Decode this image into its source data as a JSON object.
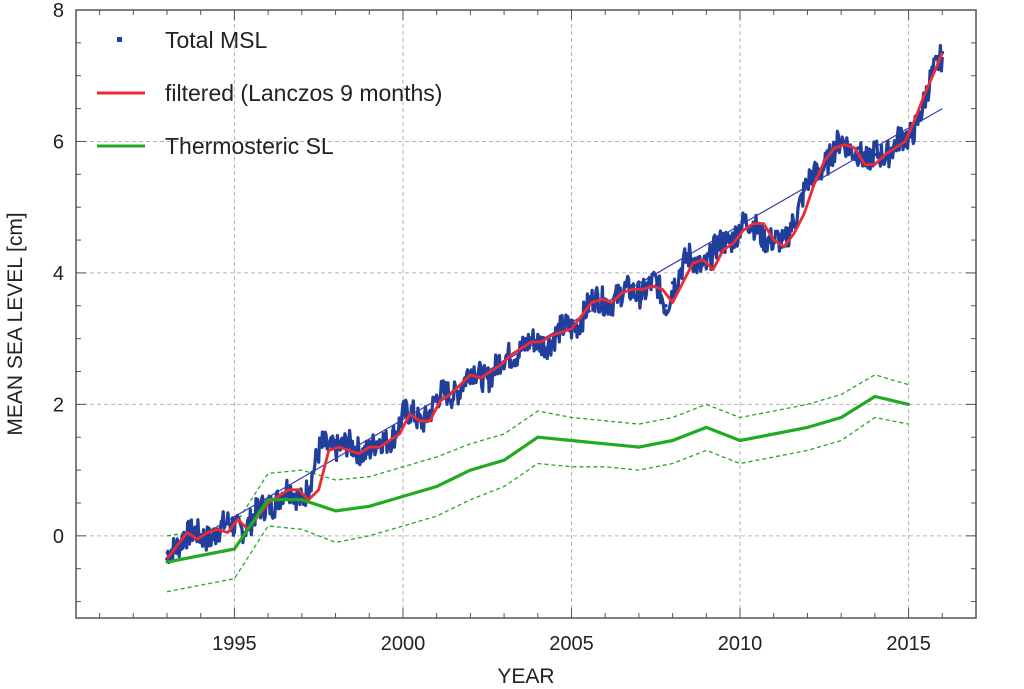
{
  "chart_data": {
    "type": "line",
    "xlabel": "YEAR",
    "ylabel": "MEAN SEA LEVEL [cm]",
    "xlim": [
      1990.3,
      2017.0
    ],
    "ylim": [
      -1.25,
      8.0
    ],
    "x_ticks": [
      1995,
      2000,
      2005,
      2010,
      2015
    ],
    "y_ticks": [
      0,
      2,
      4,
      6,
      8
    ],
    "grid": true,
    "legend_position": "top-left",
    "legend": [
      "Total MSL",
      "filtered (Lanczos 9 months)",
      "Thermosteric SL"
    ],
    "colors": {
      "total_msl": "#1f3f9a",
      "filtered": "#ee2a35",
      "thermosteric": "#22aa22",
      "trend": "#3a3ab0",
      "grid": "#b4b4b4",
      "frame": "#555555"
    },
    "series": [
      {
        "name": "Total MSL",
        "style": "points",
        "x": [
          1993.0,
          1993.5,
          1994.0,
          1994.5,
          1995.0,
          1995.5,
          1996.0,
          1996.5,
          1997.0,
          1997.3,
          1997.6,
          1998.0,
          1998.5,
          1999.0,
          1999.5,
          2000.0,
          2000.5,
          2001.0,
          2001.5,
          2002.0,
          2002.5,
          2003.0,
          2003.5,
          2004.0,
          2004.5,
          2005.0,
          2005.5,
          2006.0,
          2006.5,
          2007.0,
          2007.5,
          2007.8,
          2008.0,
          2008.5,
          2009.0,
          2009.5,
          2010.0,
          2010.5,
          2011.0,
          2011.3,
          2011.5,
          2012.0,
          2012.5,
          2013.0,
          2013.5,
          2013.8,
          2014.0,
          2014.5,
          2015.0,
          2015.5,
          2016.0
        ],
        "y": [
          -0.35,
          0.05,
          -0.05,
          0.1,
          0.15,
          0.2,
          0.5,
          0.65,
          0.6,
          0.9,
          1.35,
          1.4,
          1.3,
          1.35,
          1.4,
          1.85,
          1.75,
          2.05,
          2.2,
          2.45,
          2.45,
          2.65,
          2.9,
          2.9,
          3.05,
          3.15,
          3.5,
          3.6,
          3.65,
          3.75,
          3.8,
          3.5,
          3.85,
          4.2,
          4.15,
          4.45,
          4.7,
          4.7,
          4.45,
          4.4,
          4.75,
          5.3,
          5.7,
          5.95,
          5.9,
          5.6,
          5.8,
          5.9,
          6.05,
          6.65,
          7.35
        ]
      },
      {
        "name": "filtered (Lanczos 9 months)",
        "style": "line",
        "x": [
          1993.0,
          1993.3,
          1993.6,
          1993.9,
          1994.2,
          1994.5,
          1994.8,
          1995.1,
          1995.4,
          1995.7,
          1996.0,
          1996.3,
          1996.6,
          1996.9,
          1997.2,
          1997.5,
          1997.8,
          1998.1,
          1998.4,
          1998.7,
          1999.0,
          1999.3,
          1999.6,
          1999.9,
          2000.2,
          2000.5,
          2000.8,
          2001.1,
          2001.4,
          2001.7,
          2002.0,
          2002.3,
          2002.6,
          2002.9,
          2003.2,
          2003.5,
          2003.8,
          2004.1,
          2004.4,
          2004.7,
          2005.0,
          2005.3,
          2005.6,
          2005.9,
          2006.2,
          2006.5,
          2006.8,
          2007.1,
          2007.4,
          2007.7,
          2008.0,
          2008.3,
          2008.6,
          2008.9,
          2009.2,
          2009.5,
          2009.8,
          2010.1,
          2010.4,
          2010.7,
          2011.0,
          2011.3,
          2011.6,
          2011.9,
          2012.2,
          2012.5,
          2012.8,
          2013.1,
          2013.4,
          2013.7,
          2014.0,
          2014.3,
          2014.6,
          2014.9,
          2015.2,
          2015.5,
          2015.8,
          2016.0
        ],
        "y": [
          -0.35,
          -0.15,
          0.05,
          -0.05,
          0.05,
          0.1,
          0.05,
          0.25,
          0.1,
          0.3,
          0.5,
          0.6,
          0.7,
          0.7,
          0.55,
          0.7,
          1.3,
          1.35,
          1.3,
          1.25,
          1.35,
          1.35,
          1.45,
          1.55,
          1.85,
          1.75,
          1.75,
          2.05,
          2.15,
          2.3,
          2.45,
          2.4,
          2.5,
          2.6,
          2.75,
          2.85,
          2.95,
          2.95,
          3.05,
          3.1,
          3.15,
          3.35,
          3.55,
          3.6,
          3.55,
          3.7,
          3.75,
          3.75,
          3.8,
          3.75,
          3.55,
          3.85,
          4.15,
          4.2,
          4.05,
          4.35,
          4.45,
          4.65,
          4.75,
          4.75,
          4.5,
          4.4,
          4.6,
          4.9,
          5.35,
          5.7,
          5.9,
          5.95,
          5.9,
          5.65,
          5.65,
          5.8,
          5.9,
          6.0,
          6.35,
          6.75,
          7.1,
          7.35
        ]
      },
      {
        "name": "Thermosteric SL",
        "style": "line",
        "x": [
          1993,
          1995,
          1996,
          1997,
          1998,
          1999,
          2000,
          2001,
          2002,
          2003,
          2004,
          2005,
          2006,
          2007,
          2008,
          2009,
          2010,
          2011,
          2012,
          2013,
          2014,
          2015
        ],
        "y": [
          -0.4,
          -0.2,
          0.55,
          0.55,
          0.38,
          0.45,
          0.6,
          0.75,
          1.0,
          1.15,
          1.5,
          1.45,
          1.4,
          1.35,
          1.45,
          1.65,
          1.45,
          1.55,
          1.65,
          1.8,
          2.12,
          2.0
        ],
        "upper": [
          0.0,
          0.15,
          0.95,
          1.0,
          0.85,
          0.9,
          1.05,
          1.2,
          1.4,
          1.55,
          1.9,
          1.8,
          1.75,
          1.7,
          1.8,
          2.0,
          1.8,
          1.9,
          2.0,
          2.15,
          2.45,
          2.3
        ],
        "lower": [
          -0.85,
          -0.65,
          0.15,
          0.1,
          -0.1,
          0.0,
          0.15,
          0.3,
          0.55,
          0.75,
          1.1,
          1.05,
          1.05,
          1.0,
          1.1,
          1.3,
          1.1,
          1.2,
          1.3,
          1.45,
          1.8,
          1.7
        ]
      },
      {
        "style": "trend",
        "x": [
          1993.0,
          2016.0
        ],
        "y": [
          -0.3,
          6.5
        ]
      }
    ]
  }
}
